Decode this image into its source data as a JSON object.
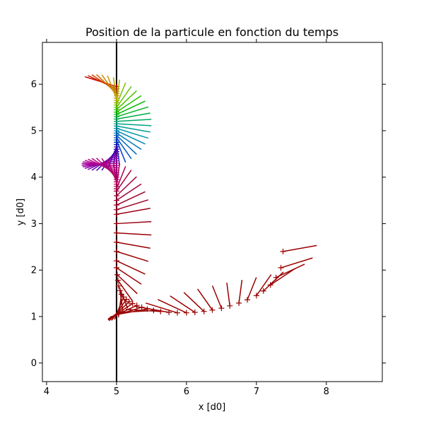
{
  "chart_data": {
    "type": "line",
    "title": "Position de la particule en fonction du temps",
    "xlabel": "x [d0]",
    "ylabel": "y [d0]",
    "xlim": [
      3.94,
      8.8
    ],
    "ylim": [
      -0.4,
      6.9
    ],
    "xticks": [
      "4",
      "5",
      "6",
      "7",
      "8"
    ],
    "yticks": [
      "0",
      "1",
      "2",
      "3",
      "4",
      "5",
      "6"
    ],
    "grid": false,
    "vertical_line": {
      "x": 5,
      "color": "#000000"
    },
    "series": [
      {
        "x": [
          5.0,
          5.0,
          5.0,
          5.0,
          5.0,
          5.0,
          5.0,
          5.0,
          5.0,
          5.0,
          5.0,
          5.0,
          5.0,
          5.0,
          5.0,
          5.0,
          5.0,
          5.0,
          5.0,
          5.0,
          5.0,
          5.0,
          5.0,
          5.0,
          5.0,
          5.0,
          5.0,
          5.0,
          5.0,
          5.0,
          5.0,
          5.0,
          5.0,
          5.0,
          5.0,
          5.0,
          5.0,
          5.0,
          5.0,
          5.0,
          5.0,
          5.0,
          5.0,
          5.0,
          5.0,
          5.0,
          5.0,
          5.0,
          5.0,
          5.0,
          5.0,
          5.0,
          5.0,
          5.0,
          5.0,
          5.0,
          5.0,
          5.01,
          5.02,
          5.03,
          5.05,
          5.07,
          5.1,
          5.14,
          5.18,
          5.23,
          5.29,
          5.36,
          5.44,
          5.53,
          5.63,
          5.75,
          5.87,
          6.0,
          6.12,
          6.25,
          6.37,
          6.5,
          6.62,
          6.75,
          6.87,
          7.0,
          7.1,
          7.2,
          7.28,
          7.35,
          7.38
        ],
        "y": [
          5.95,
          5.9,
          5.85,
          5.8,
          5.75,
          5.7,
          5.65,
          5.6,
          5.55,
          5.5,
          5.45,
          5.4,
          5.35,
          5.3,
          5.25,
          5.2,
          5.15,
          5.1,
          5.05,
          5.0,
          4.95,
          4.9,
          4.85,
          4.8,
          4.75,
          4.7,
          4.65,
          4.6,
          4.55,
          4.5,
          4.45,
          4.4,
          4.35,
          4.3,
          4.25,
          4.2,
          4.15,
          4.1,
          4.05,
          4.0,
          3.95,
          3.9,
          3.85,
          3.8,
          3.75,
          3.7,
          3.6,
          3.5,
          3.4,
          3.3,
          3.2,
          3.0,
          2.8,
          2.6,
          2.4,
          2.2,
          2.05,
          1.9,
          1.78,
          1.66,
          1.56,
          1.48,
          1.42,
          1.37,
          1.32,
          1.28,
          1.24,
          1.2,
          1.16,
          1.13,
          1.11,
          1.09,
          1.08,
          1.08,
          1.09,
          1.11,
          1.14,
          1.18,
          1.23,
          1.29,
          1.36,
          1.45,
          1.55,
          1.68,
          1.84,
          2.05,
          2.4
        ],
        "angle_deg": [
          155,
          145,
          135,
          125,
          115,
          105,
          95,
          85,
          75,
          65,
          55,
          45,
          35,
          25,
          15,
          5,
          -5,
          -15,
          -25,
          -35,
          -45,
          -55,
          -65,
          -75,
          -85,
          -95,
          -105,
          -115,
          -125,
          -135,
          -145,
          -155,
          -165,
          -175,
          175,
          165,
          155,
          145,
          135,
          125,
          115,
          105,
          95,
          85,
          75,
          65,
          55,
          45,
          35,
          25,
          15,
          5,
          -5,
          -15,
          -25,
          -35,
          -45,
          -55,
          -65,
          -75,
          -85,
          -95,
          -105,
          -115,
          -125,
          -135,
          -145,
          -155,
          -165,
          -175,
          175,
          165,
          155,
          145,
          135,
          125,
          115,
          105,
          95,
          85,
          75,
          65,
          55,
          45,
          35,
          25,
          15
        ],
        "colors": [
          "#cc0000",
          "#cc2200",
          "#cc4400",
          "#cc6600",
          "#cc8800",
          "#c49a00",
          "#b3a800",
          "#9fb400",
          "#85be00",
          "#66c400",
          "#44c400",
          "#22bf00",
          "#00b800",
          "#00b322",
          "#00ad44",
          "#00a866",
          "#00a388",
          "#009e99",
          "#0099aa",
          "#0088b3",
          "#0077bb",
          "#0066c0",
          "#0055c4",
          "#0044c4",
          "#0033c0",
          "#0022bb",
          "#1a00b8",
          "#3300b3",
          "#4c00b0",
          "#6600ad",
          "#7a00aa",
          "#8c00a8",
          "#9900a3",
          "#a3009e",
          "#aa0099",
          "#ad0094",
          "#b0008f",
          "#b3008a",
          "#b30080",
          "#b30077",
          "#b3006e",
          "#b30066",
          "#b0005e",
          "#ad0055",
          "#aa004c",
          "#a80044",
          "#a6003c",
          "#a30033",
          "#a0002b",
          "#9e0022",
          "#9c001a",
          "#990011",
          "#990008",
          "#990000",
          "#990000",
          "#990000",
          "#990000",
          "#990000",
          "#990000",
          "#990000",
          "#990000",
          "#990000",
          "#990000",
          "#990000",
          "#990000",
          "#990000",
          "#990000",
          "#990000",
          "#990000",
          "#990000",
          "#990000",
          "#990000",
          "#990000",
          "#990000",
          "#990000",
          "#990000",
          "#990000",
          "#990000",
          "#990000",
          "#990000",
          "#990000",
          "#990000",
          "#990000",
          "#990000",
          "#990000",
          "#990000",
          "#990000"
        ]
      }
    ]
  }
}
